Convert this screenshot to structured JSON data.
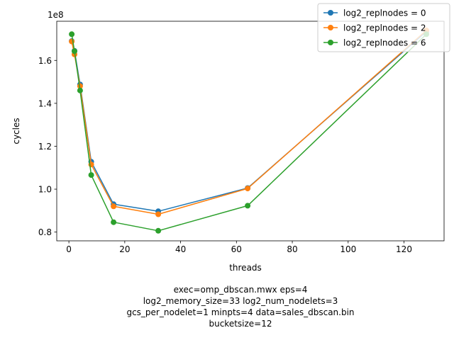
{
  "chart_data": {
    "type": "line",
    "xlabel": "threads",
    "ylabel": "cycles",
    "y_offset_label": "1e8",
    "xlim": [
      -4.35,
      134.35
    ],
    "ylim": [
      0.7592,
      1.7825
    ],
    "x_ticks": [
      0,
      20,
      40,
      60,
      80,
      100,
      120
    ],
    "y_ticks": [
      0.8,
      1.0,
      1.2,
      1.4,
      1.6
    ],
    "y_tick_labels": [
      "0.8",
      "1.0",
      "1.2",
      "1.4",
      "1.6"
    ],
    "legend_position": "top-right",
    "grid": false,
    "x": [
      1,
      2,
      4,
      8,
      16,
      32,
      64,
      128
    ],
    "series": [
      {
        "name": "log2_replnodes = 0",
        "color": "#1f77b4",
        "values": [
          1.69,
          1.645,
          1.488,
          1.128,
          0.93,
          0.897,
          1.005,
          1.735
        ]
      },
      {
        "name": "log2_replnodes = 2",
        "color": "#ff7f0e",
        "values": [
          1.688,
          1.628,
          1.48,
          1.115,
          0.92,
          0.883,
          1.003,
          1.74
        ]
      },
      {
        "name": "log2_replnodes = 6",
        "color": "#2ca02c",
        "values": [
          1.722,
          1.643,
          1.46,
          1.066,
          0.846,
          0.806,
          0.923,
          1.722
        ]
      }
    ],
    "caption_lines": [
      "exec=omp_dbscan.mwx   eps=4",
      "log2_memory_size=33   log2_num_nodelets=3",
      "gcs_per_nodelet=1   minpts=4   data=sales_dbscan.bin",
      "bucketsize=12"
    ]
  }
}
